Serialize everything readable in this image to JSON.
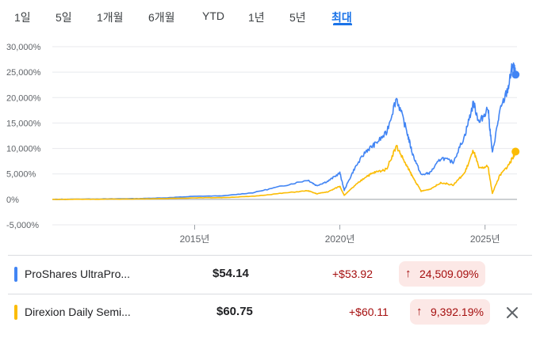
{
  "tabs": [
    {
      "label": "1일"
    },
    {
      "label": "5일"
    },
    {
      "label": "1개월"
    },
    {
      "label": "6개월"
    },
    {
      "label": "YTD"
    },
    {
      "label": "1년"
    },
    {
      "label": "5년"
    },
    {
      "label": "최대",
      "active": true
    }
  ],
  "chart_data": {
    "type": "line",
    "y_ticks": [
      "30,000%",
      "25,000%",
      "20,000%",
      "15,000%",
      "10,000%",
      "5,000%",
      "0%",
      "-5,000%"
    ],
    "ylim": [
      -5000,
      30000
    ],
    "x_ticks": [
      {
        "label": "2015년",
        "year": 2015
      },
      {
        "label": "2020년",
        "year": 2020
      },
      {
        "label": "2025년",
        "year": 2025
      }
    ],
    "x_range_years": [
      2010.1,
      2026.1
    ],
    "series": [
      {
        "name": "ProShares UltraPro...",
        "color": "#4285f4",
        "points": [
          [
            2010.1,
            0
          ],
          [
            2011,
            50
          ],
          [
            2012,
            80
          ],
          [
            2013,
            150
          ],
          [
            2014,
            300
          ],
          [
            2015,
            600
          ],
          [
            2016,
            700
          ],
          [
            2017,
            1300
          ],
          [
            2018,
            2600
          ],
          [
            2018.9,
            3800
          ],
          [
            2019.2,
            2700
          ],
          [
            2019.6,
            3600
          ],
          [
            2020.0,
            5200
          ],
          [
            2020.15,
            1800
          ],
          [
            2020.5,
            6000
          ],
          [
            2020.9,
            9500
          ],
          [
            2021.2,
            10800
          ],
          [
            2021.6,
            13000
          ],
          [
            2021.95,
            20000
          ],
          [
            2022.3,
            13500
          ],
          [
            2022.5,
            9000
          ],
          [
            2022.8,
            4800
          ],
          [
            2023.1,
            5200
          ],
          [
            2023.5,
            8200
          ],
          [
            2023.9,
            7300
          ],
          [
            2024.3,
            12500
          ],
          [
            2024.6,
            19000
          ],
          [
            2024.8,
            15000
          ],
          [
            2025.1,
            18000
          ],
          [
            2025.25,
            9000
          ],
          [
            2025.5,
            17000
          ],
          [
            2025.8,
            22000
          ],
          [
            2025.95,
            26500
          ],
          [
            2026.05,
            24509
          ]
        ]
      },
      {
        "name": "Direxion Daily Semi...",
        "color": "#fbbc04",
        "points": [
          [
            2010.1,
            0
          ],
          [
            2011,
            20
          ],
          [
            2012,
            40
          ],
          [
            2013,
            80
          ],
          [
            2014,
            150
          ],
          [
            2015,
            300
          ],
          [
            2016,
            350
          ],
          [
            2017,
            600
          ],
          [
            2018,
            1200
          ],
          [
            2018.9,
            1700
          ],
          [
            2019.2,
            1100
          ],
          [
            2019.6,
            1500
          ],
          [
            2020.0,
            2600
          ],
          [
            2020.15,
            800
          ],
          [
            2020.5,
            2600
          ],
          [
            2020.9,
            4500
          ],
          [
            2021.2,
            5300
          ],
          [
            2021.6,
            5900
          ],
          [
            2021.95,
            10500
          ],
          [
            2022.3,
            6600
          ],
          [
            2022.5,
            4500
          ],
          [
            2022.8,
            1600
          ],
          [
            2023.1,
            2000
          ],
          [
            2023.5,
            3300
          ],
          [
            2023.9,
            2800
          ],
          [
            2024.3,
            5200
          ],
          [
            2024.6,
            9600
          ],
          [
            2024.8,
            6000
          ],
          [
            2025.1,
            6500
          ],
          [
            2025.25,
            1200
          ],
          [
            2025.5,
            4600
          ],
          [
            2025.8,
            6700
          ],
          [
            2025.95,
            8100
          ],
          [
            2026.05,
            9392
          ]
        ]
      }
    ]
  },
  "rows": [
    {
      "name": "ProShares UltraPro...",
      "color": "#4285f4",
      "price": "$54.14",
      "change": "+$53.92",
      "percent": "24,509.09%",
      "arrow": "↑"
    },
    {
      "name": "Direxion Daily Semi...",
      "color": "#fbbc04",
      "price": "$60.75",
      "change": "+$60.11",
      "percent": "9,392.19%",
      "arrow": "↑",
      "removable": true
    }
  ]
}
